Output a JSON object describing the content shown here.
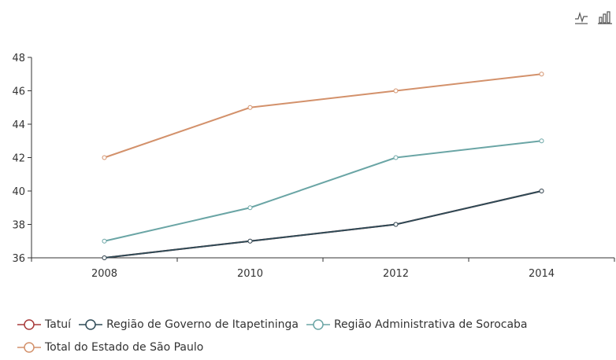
{
  "toolbox": {
    "icons": [
      "line-chart-icon",
      "bar-chart-icon"
    ]
  },
  "chart_data": {
    "type": "line",
    "categories": [
      "2008",
      "2010",
      "2012",
      "2014"
    ],
    "ylim": [
      36,
      48
    ],
    "yticks": [
      36,
      38,
      40,
      42,
      44,
      46,
      48
    ],
    "grid": false,
    "legend_position": "bottom",
    "series": [
      {
        "name": "Tatuí",
        "color": "#a83a3a",
        "values": [
          36,
          37,
          38,
          40
        ]
      },
      {
        "name": "Região de Governo de Itapetininga",
        "color": "#2e4a56",
        "values": [
          36,
          37,
          38,
          40
        ]
      },
      {
        "name": "Região Administrativa de Sorocaba",
        "color": "#6aa5a5",
        "values": [
          37,
          39,
          42,
          43
        ]
      },
      {
        "name": "Total do Estado de São Paulo",
        "color": "#d3916b",
        "values": [
          42,
          45,
          46,
          47
        ]
      }
    ]
  }
}
